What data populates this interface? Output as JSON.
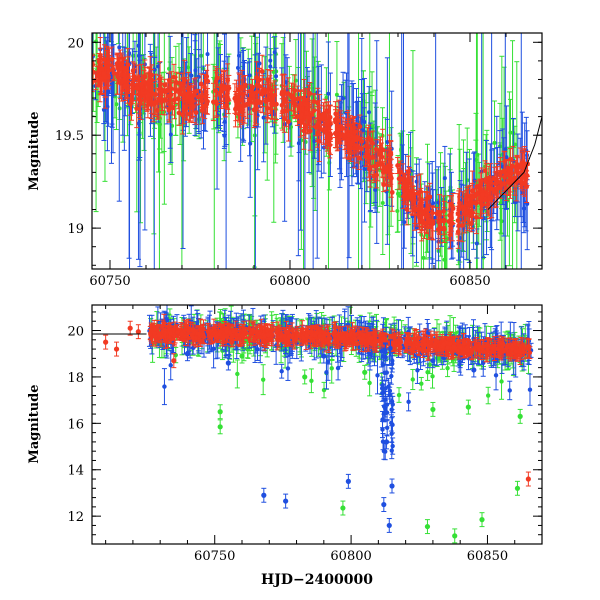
{
  "colors": {
    "blue": "#1f4fe0",
    "green": "#35e035",
    "red": "#f23a23",
    "axis": "#000000"
  },
  "chart_data": [
    {
      "type": "scatter",
      "title": "",
      "xlabel": "",
      "ylabel": "Magnitude",
      "xlim": [
        60745,
        60870
      ],
      "ylim": [
        20.05,
        18.78
      ],
      "y_inverted": true,
      "xticks": [
        60750,
        60800,
        60850
      ],
      "xtick_labels": [
        "60750",
        "60800",
        "60850"
      ],
      "yticks": [
        19,
        19.5,
        20
      ],
      "ytick_labels": [
        "19",
        "19.5",
        "20"
      ],
      "grid": false,
      "legend": "none",
      "series": [
        {
          "color_key": "red",
          "x": [
            60746,
            60752,
            60758,
            60764,
            60770,
            60776,
            60782,
            60788,
            60794,
            60800,
            60806,
            60812,
            60818,
            60824,
            60830,
            60836,
            60842,
            60848,
            60854,
            60860,
            60866
          ],
          "y": [
            19.85,
            19.82,
            19.75,
            19.72,
            19.7,
            19.72,
            19.73,
            19.7,
            19.72,
            19.68,
            19.6,
            19.55,
            19.48,
            19.38,
            19.28,
            19.1,
            19.02,
            19.08,
            19.2,
            19.28,
            19.32
          ]
        }
      ],
      "overlay_line": {
        "x": [
          60855,
          60860,
          60865,
          60868,
          60870
        ],
        "y": [
          19.1,
          19.2,
          19.3,
          19.45,
          19.6
        ]
      }
    },
    {
      "type": "scatter",
      "title": "",
      "xlabel": "HJD−2400000",
      "ylabel": "Magnitude",
      "xlim": [
        60705,
        60870
      ],
      "ylim": [
        21.1,
        10.8
      ],
      "y_inverted": true,
      "xticks": [
        60750,
        60800,
        60850
      ],
      "xtick_labels": [
        "60750",
        "60800",
        "60850"
      ],
      "yticks": [
        12,
        14,
        16,
        18,
        20
      ],
      "ytick_labels": [
        "12",
        "14",
        "16",
        "18",
        "20"
      ],
      "grid": false,
      "legend": "none",
      "series": [
        {
          "color_key": "blue",
          "x": [
            60768,
            60776,
            60799,
            60812,
            60814,
            60815,
            60813,
            60740,
            60755,
            60790,
            60830,
            60845
          ],
          "y": [
            12.9,
            12.65,
            13.5,
            12.5,
            11.6,
            13.3,
            15.2,
            19.0,
            18.6,
            18.9,
            18.7,
            18.3
          ]
        },
        {
          "color_key": "green",
          "x": [
            60752,
            60752,
            60797,
            60828,
            60838,
            60848,
            60861,
            60783,
            60830,
            60843,
            60862,
            60760,
            60805
          ],
          "y": [
            15.85,
            16.5,
            12.35,
            11.55,
            11.15,
            11.85,
            13.2,
            18.0,
            16.6,
            16.7,
            16.3,
            18.9,
            18.2
          ]
        },
        {
          "color_key": "red",
          "x": [
            60710,
            60714,
            60719,
            60722,
            60735,
            60865
          ],
          "y": [
            19.5,
            19.2,
            20.1,
            19.95,
            18.7,
            13.6
          ]
        }
      ],
      "baseline_trend": {
        "x": [
          60725,
          60750,
          60775,
          60800,
          60825,
          60850,
          60866
        ],
        "y": [
          19.9,
          19.85,
          19.8,
          19.7,
          19.45,
          19.2,
          19.2
        ]
      },
      "flat_segment": {
        "x": [
          60705,
          60725
        ],
        "y": [
          19.85,
          19.85
        ]
      }
    }
  ]
}
